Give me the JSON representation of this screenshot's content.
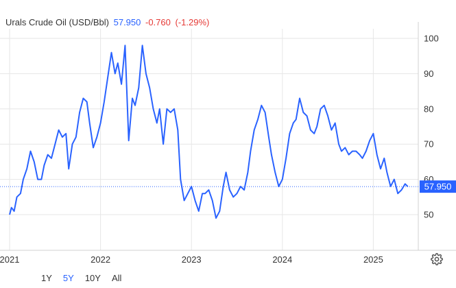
{
  "header": {
    "name": "Urals Crude Oil (USD/Bbl)",
    "price": "57.950",
    "change": "-0.760",
    "change_pct": "(-1.29%)"
  },
  "range_selector": {
    "options": [
      "1Y",
      "5Y",
      "10Y",
      "All"
    ],
    "active": "5Y"
  },
  "colors": {
    "line": "#2962ff",
    "negative": "#e53935",
    "grid": "#e6e6e6",
    "text": "#333333"
  },
  "icons": {
    "settings": "gear-icon"
  },
  "chart_data": {
    "type": "line",
    "title": "Urals Crude Oil (USD/Bbl)",
    "xlabel": "",
    "ylabel": "",
    "y_axis_side": "right",
    "ylim": [
      40,
      100
    ],
    "y_ticks": [
      50,
      60,
      70,
      80,
      90,
      100
    ],
    "x_ticks": [
      "2021",
      "2022",
      "2023",
      "2024",
      "2025"
    ],
    "xlim": [
      2020.93,
      2025.66
    ],
    "grid": true,
    "last_value": 57.95,
    "series": [
      {
        "name": "Urals Crude Oil (USD/Bbl)",
        "points": [
          [
            2021.0,
            50
          ],
          [
            2021.02,
            52
          ],
          [
            2021.05,
            51
          ],
          [
            2021.08,
            55
          ],
          [
            2021.12,
            56
          ],
          [
            2021.15,
            60
          ],
          [
            2021.19,
            63
          ],
          [
            2021.23,
            68
          ],
          [
            2021.27,
            65
          ],
          [
            2021.31,
            60
          ],
          [
            2021.35,
            60
          ],
          [
            2021.38,
            64
          ],
          [
            2021.42,
            67
          ],
          [
            2021.46,
            66
          ],
          [
            2021.5,
            70
          ],
          [
            2021.54,
            74
          ],
          [
            2021.58,
            72
          ],
          [
            2021.62,
            73
          ],
          [
            2021.65,
            63
          ],
          [
            2021.69,
            70
          ],
          [
            2021.73,
            72
          ],
          [
            2021.77,
            79
          ],
          [
            2021.81,
            83
          ],
          [
            2021.85,
            82
          ],
          [
            2021.88,
            76
          ],
          [
            2021.92,
            69
          ],
          [
            2021.96,
            72
          ],
          [
            2022.0,
            76
          ],
          [
            2022.04,
            82
          ],
          [
            2022.08,
            89
          ],
          [
            2022.12,
            96
          ],
          [
            2022.16,
            90
          ],
          [
            2022.19,
            93
          ],
          [
            2022.23,
            87
          ],
          [
            2022.27,
            98
          ],
          [
            2022.31,
            71
          ],
          [
            2022.35,
            83
          ],
          [
            2022.38,
            81
          ],
          [
            2022.42,
            86
          ],
          [
            2022.46,
            98
          ],
          [
            2022.5,
            90
          ],
          [
            2022.54,
            86
          ],
          [
            2022.58,
            80
          ],
          [
            2022.62,
            76
          ],
          [
            2022.65,
            80
          ],
          [
            2022.69,
            70
          ],
          [
            2022.73,
            80
          ],
          [
            2022.77,
            79
          ],
          [
            2022.81,
            80
          ],
          [
            2022.85,
            74
          ],
          [
            2022.88,
            60
          ],
          [
            2022.92,
            54
          ],
          [
            2022.96,
            56
          ],
          [
            2023.0,
            58
          ],
          [
            2023.04,
            54
          ],
          [
            2023.08,
            51
          ],
          [
            2023.12,
            56
          ],
          [
            2023.15,
            56
          ],
          [
            2023.19,
            57
          ],
          [
            2023.23,
            54
          ],
          [
            2023.27,
            49
          ],
          [
            2023.31,
            51
          ],
          [
            2023.35,
            58
          ],
          [
            2023.38,
            62
          ],
          [
            2023.42,
            57
          ],
          [
            2023.46,
            55
          ],
          [
            2023.5,
            56
          ],
          [
            2023.54,
            58
          ],
          [
            2023.58,
            57
          ],
          [
            2023.62,
            62
          ],
          [
            2023.65,
            68
          ],
          [
            2023.69,
            74
          ],
          [
            2023.73,
            77
          ],
          [
            2023.77,
            81
          ],
          [
            2023.81,
            79
          ],
          [
            2023.85,
            72
          ],
          [
            2023.88,
            67
          ],
          [
            2023.92,
            62
          ],
          [
            2023.96,
            58
          ],
          [
            2024.0,
            60
          ],
          [
            2024.04,
            66
          ],
          [
            2024.08,
            73
          ],
          [
            2024.12,
            76
          ],
          [
            2024.15,
            77
          ],
          [
            2024.19,
            83
          ],
          [
            2024.23,
            79
          ],
          [
            2024.27,
            78
          ],
          [
            2024.31,
            74
          ],
          [
            2024.35,
            73
          ],
          [
            2024.38,
            75
          ],
          [
            2024.42,
            80
          ],
          [
            2024.46,
            81
          ],
          [
            2024.5,
            78
          ],
          [
            2024.54,
            74
          ],
          [
            2024.58,
            76
          ],
          [
            2024.62,
            70
          ],
          [
            2024.65,
            68
          ],
          [
            2024.69,
            69
          ],
          [
            2024.73,
            67
          ],
          [
            2024.77,
            68
          ],
          [
            2024.81,
            68
          ],
          [
            2024.85,
            67
          ],
          [
            2024.88,
            66
          ],
          [
            2024.92,
            68
          ],
          [
            2024.96,
            71
          ],
          [
            2025.0,
            73
          ],
          [
            2025.04,
            67
          ],
          [
            2025.08,
            63
          ],
          [
            2025.12,
            66
          ],
          [
            2025.15,
            62
          ],
          [
            2025.19,
            58
          ],
          [
            2025.23,
            60
          ],
          [
            2025.27,
            56
          ],
          [
            2025.31,
            57
          ],
          [
            2025.35,
            58.71
          ],
          [
            2025.38,
            57.95
          ]
        ]
      }
    ]
  }
}
